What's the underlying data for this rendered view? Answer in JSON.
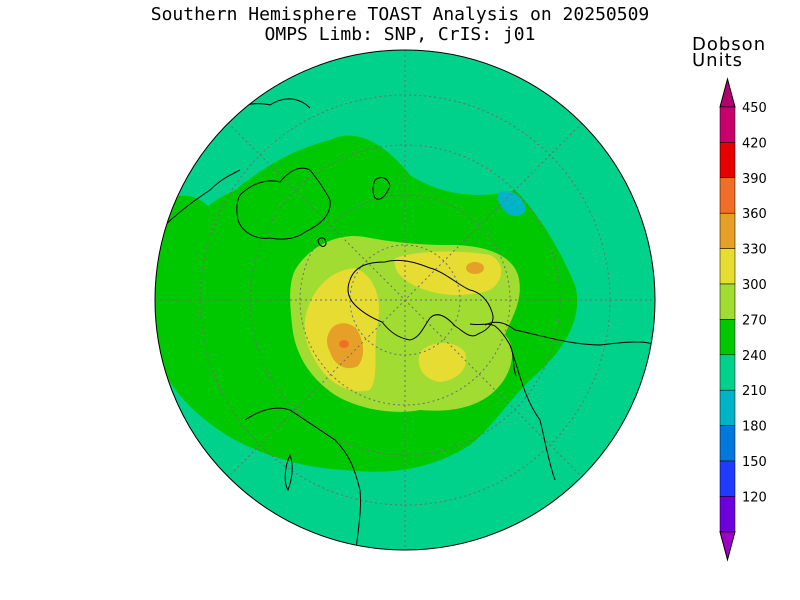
{
  "header": {
    "title": "Southern Hemisphere TOAST Analysis on 20250509",
    "subtitle": "OMPS Limb: SNP, CrIS: j01"
  },
  "colorbar": {
    "title_line1": "Dobson",
    "title_line2": "Units",
    "levels": [
      {
        "value": "450",
        "color": "#c8006e"
      },
      {
        "value": "420",
        "color": "#e60000"
      },
      {
        "value": "390",
        "color": "#f06e28"
      },
      {
        "value": "360",
        "color": "#e6a028"
      },
      {
        "value": "330",
        "color": "#e6dc32"
      },
      {
        "value": "300",
        "color": "#a0dc32"
      },
      {
        "value": "270",
        "color": "#00c800"
      },
      {
        "value": "240",
        "color": "#00d28c"
      },
      {
        "value": "210",
        "color": "#00b4c8"
      },
      {
        "value": "180",
        "color": "#0078dc"
      },
      {
        "value": "150",
        "color": "#1e3cff"
      },
      {
        "value": "120",
        "color": "#6e00dc"
      }
    ],
    "top_arrow_color": "#b4006e",
    "bottom_arrow_color": "#a000c8"
  },
  "map": {
    "projection": "south-polar-stereographic",
    "background_color": "#00d28c",
    "ozone_colors": {
      "c240": "#00d28c",
      "c270": "#00c800",
      "c300": "#a0dc32",
      "c330": "#e6dc32",
      "c360": "#e6a028",
      "c390": "#f06e28",
      "c210": "#00b4c8"
    }
  }
}
